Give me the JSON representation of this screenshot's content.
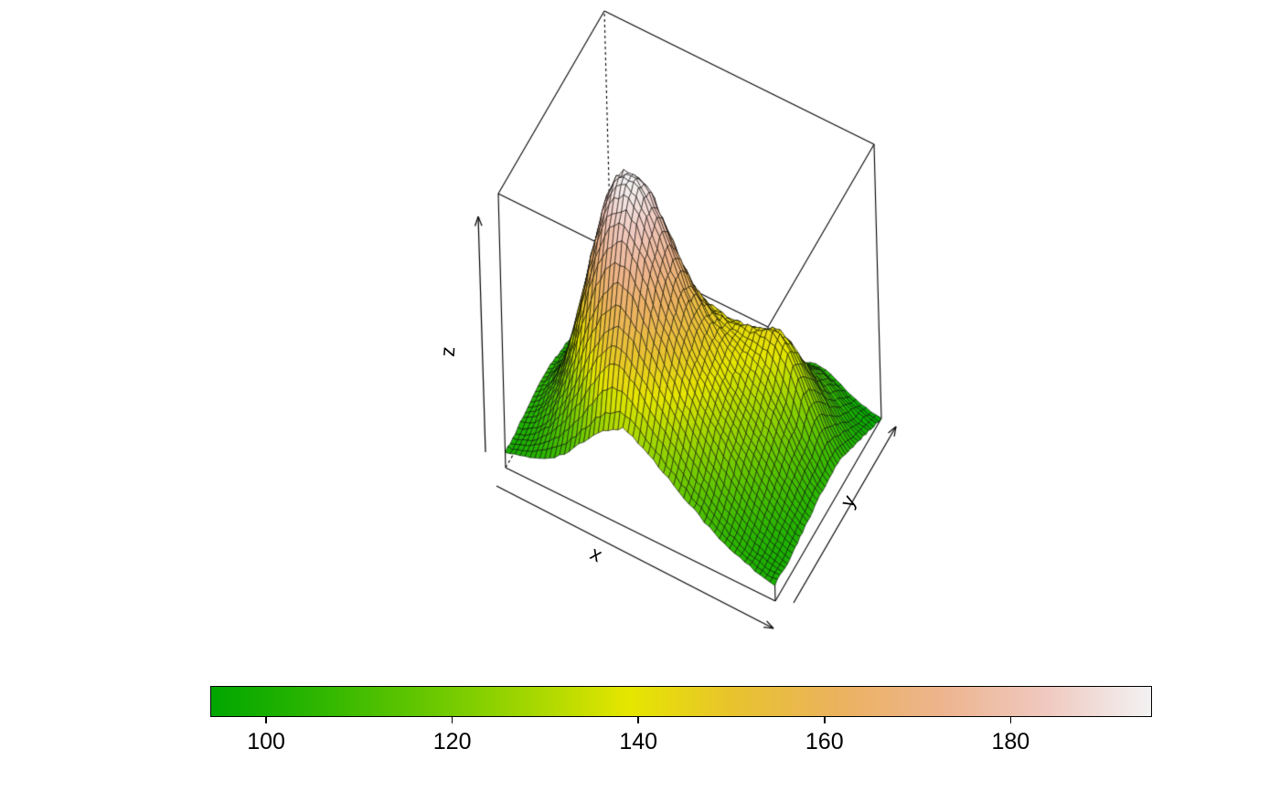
{
  "chart_data": {
    "type": "surface",
    "xlabel": "x",
    "ylabel": "y",
    "zlabel": "z",
    "zlim": [
      94,
      195
    ],
    "wireframe_color": "#000000",
    "background": "#FFFFFF",
    "palette": {
      "name": "terrain",
      "stops": [
        "#00A600",
        "#2DB600",
        "#63C600",
        "#A0D600",
        "#E6E600",
        "#E8C32E",
        "#EBB25E",
        "#EDB48E",
        "#F0C9C0",
        "#F2F2F2"
      ]
    },
    "colorbar": {
      "min": 94,
      "max": 195,
      "ticks": [
        100,
        120,
        140,
        160,
        180
      ],
      "orientation": "horizontal"
    },
    "grid": {
      "nx": 19,
      "ny": 15
    },
    "z": [
      [
        100,
        101,
        103,
        106,
        110,
        116,
        122,
        127,
        130,
        128,
        124,
        120,
        116,
        112,
        108,
        105,
        103,
        101,
        100
      ],
      [
        100,
        102,
        106,
        112,
        120,
        130,
        140,
        146,
        144,
        138,
        132,
        126,
        120,
        115,
        110,
        106,
        103,
        101,
        100
      ],
      [
        101,
        104,
        110,
        120,
        133,
        147,
        158,
        163,
        158,
        150,
        142,
        134,
        127,
        120,
        114,
        109,
        105,
        102,
        100
      ],
      [
        102,
        106,
        115,
        130,
        150,
        168,
        178,
        180,
        172,
        160,
        150,
        141,
        133,
        126,
        119,
        113,
        108,
        104,
        101
      ],
      [
        103,
        108,
        120,
        140,
        163,
        182,
        191,
        190,
        180,
        167,
        155,
        145,
        137,
        130,
        123,
        117,
        111,
        106,
        102
      ],
      [
        103,
        109,
        122,
        144,
        168,
        188,
        195,
        193,
        183,
        170,
        158,
        148,
        140,
        133,
        127,
        121,
        114,
        108,
        103
      ],
      [
        103,
        108,
        120,
        140,
        162,
        180,
        188,
        186,
        177,
        166,
        156,
        148,
        142,
        137,
        132,
        126,
        118,
        110,
        104
      ],
      [
        102,
        107,
        116,
        132,
        150,
        165,
        172,
        170,
        163,
        155,
        149,
        145,
        142,
        140,
        137,
        130,
        120,
        111,
        104
      ],
      [
        101,
        105,
        112,
        124,
        138,
        150,
        156,
        155,
        150,
        145,
        142,
        141,
        141,
        142,
        143,
        138,
        126,
        114,
        105
      ],
      [
        100,
        104,
        109,
        117,
        127,
        136,
        142,
        142,
        139,
        136,
        134,
        134,
        135,
        137,
        139,
        134,
        123,
        112,
        104
      ],
      [
        99,
        102,
        106,
        111,
        118,
        125,
        129,
        129,
        127,
        125,
        124,
        124,
        126,
        128,
        130,
        126,
        117,
        108,
        102
      ],
      [
        98,
        100,
        103,
        107,
        111,
        115,
        118,
        118,
        117,
        115,
        114,
        115,
        117,
        119,
        120,
        117,
        110,
        104,
        100
      ],
      [
        96,
        98,
        100,
        103,
        106,
        109,
        111,
        111,
        110,
        109,
        108,
        109,
        110,
        112,
        113,
        110,
        105,
        100,
        98
      ],
      [
        95,
        96,
        98,
        100,
        102,
        104,
        105,
        105,
        104,
        104,
        103,
        104,
        105,
        106,
        107,
        105,
        101,
        98,
        96
      ],
      [
        94,
        95,
        96,
        97,
        98,
        99,
        100,
        100,
        99,
        99,
        98,
        99,
        100,
        101,
        102,
        100,
        97,
        95,
        94
      ]
    ]
  }
}
